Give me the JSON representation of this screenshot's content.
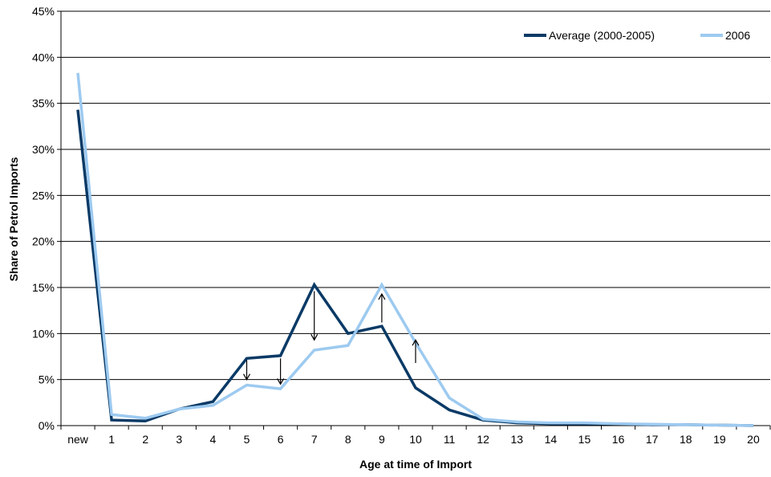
{
  "chart_data": {
    "type": "line",
    "xlabel": "Age at time of Import",
    "ylabel": "Share of Petrol Imports",
    "categories": [
      "new",
      "1",
      "2",
      "3",
      "4",
      "5",
      "6",
      "7",
      "8",
      "9",
      "10",
      "11",
      "12",
      "13",
      "14",
      "15",
      "16",
      "17",
      "18",
      "19",
      "20"
    ],
    "y_tick_labels": [
      "0%",
      "5%",
      "10%",
      "15%",
      "20%",
      "25%",
      "30%",
      "35%",
      "40%",
      "45%"
    ],
    "ylim": [
      0,
      45
    ],
    "grid": "horizontal",
    "legend_position": "top-right",
    "series": [
      {
        "name": "Average (2000-2005)",
        "color": "#0a3a66",
        "values": [
          34.3,
          0.6,
          0.5,
          1.8,
          2.6,
          7.3,
          7.6,
          15.3,
          10.0,
          10.8,
          4.1,
          1.7,
          0.6,
          0.3,
          0.2,
          0.2,
          0.2,
          0.1,
          0.1,
          0.05,
          0.0
        ]
      },
      {
        "name": "2006",
        "color": "#9dcaf0",
        "values": [
          38.3,
          1.2,
          0.8,
          1.8,
          2.2,
          4.4,
          4.0,
          8.2,
          8.7,
          15.3,
          9.0,
          3.0,
          0.7,
          0.4,
          0.3,
          0.3,
          0.2,
          0.15,
          0.1,
          0.05,
          0.0
        ]
      }
    ],
    "annotations": [
      {
        "type": "arrow",
        "category": "5",
        "from": 7.1,
        "to": 5.0
      },
      {
        "type": "arrow",
        "category": "6",
        "from": 7.3,
        "to": 4.5
      },
      {
        "type": "arrow",
        "category": "7",
        "from": 14.6,
        "to": 9.3
      },
      {
        "type": "arrow",
        "category": "9",
        "from": 11.2,
        "to": 14.3
      },
      {
        "type": "arrow",
        "category": "10",
        "from": 6.8,
        "to": 9.3
      }
    ]
  }
}
